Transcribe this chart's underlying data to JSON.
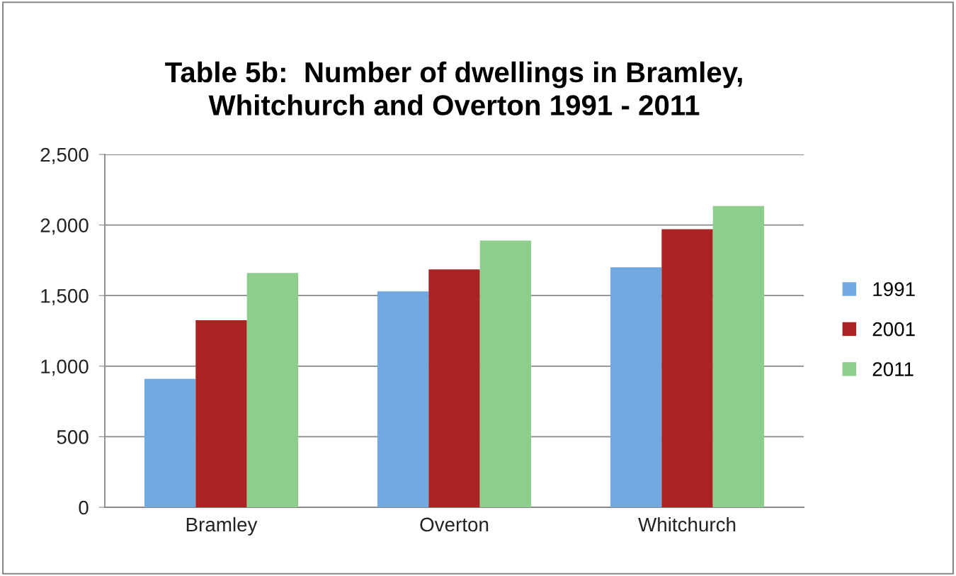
{
  "chart_data": {
    "type": "bar",
    "title": "Table 5b:  Number of dwellings in Bramley,\nWhitchurch and Overton 1991 - 2011",
    "categories": [
      "Bramley",
      "Overton",
      "Whitchurch"
    ],
    "series": [
      {
        "name": "1991",
        "color": "#71a9e0",
        "values": [
          910,
          1530,
          1700
        ]
      },
      {
        "name": "2001",
        "color": "#aa2323",
        "values": [
          1325,
          1685,
          1970
        ]
      },
      {
        "name": "2011",
        "color": "#8dce8d",
        "values": [
          1660,
          1890,
          2135
        ]
      }
    ],
    "ylim": [
      0,
      2500
    ],
    "yticks": [
      {
        "value": 0,
        "label": "0"
      },
      {
        "value": 500,
        "label": "500"
      },
      {
        "value": 1000,
        "label": "1,000"
      },
      {
        "value": 1500,
        "label": "1,500"
      },
      {
        "value": 2000,
        "label": "2,000"
      },
      {
        "value": 2500,
        "label": "2,500"
      }
    ],
    "grid": "y",
    "legend": "right"
  }
}
